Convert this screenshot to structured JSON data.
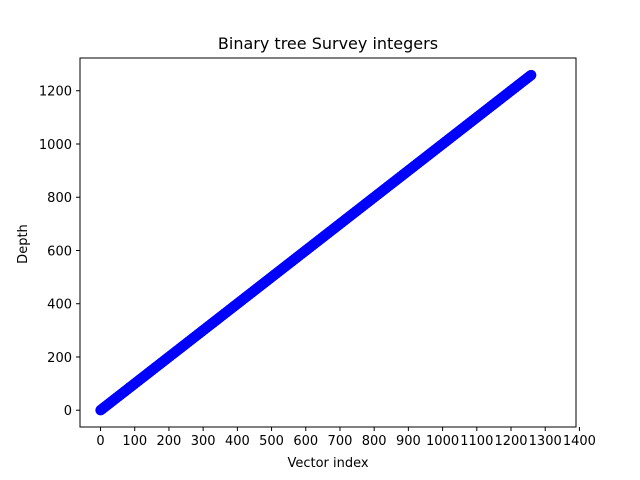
{
  "chart_data": {
    "type": "scatter",
    "title": "Binary tree Survey integers",
    "xlabel": "Vector index",
    "ylabel": "Depth",
    "xlim": [
      -60,
      1390
    ],
    "ylim": [
      -63,
      1323
    ],
    "xticks": [
      0,
      100,
      200,
      300,
      400,
      500,
      600,
      700,
      800,
      900,
      1000,
      1100,
      1200,
      1300,
      1400
    ],
    "yticks": [
      0,
      200,
      400,
      600,
      800,
      1000,
      1200
    ],
    "grid": false,
    "legend": "none",
    "marker_color": "#0000ff",
    "series": [
      {
        "x_start": 0,
        "x_end": 1259,
        "x_step": 1,
        "relation": "y = x"
      }
    ]
  }
}
